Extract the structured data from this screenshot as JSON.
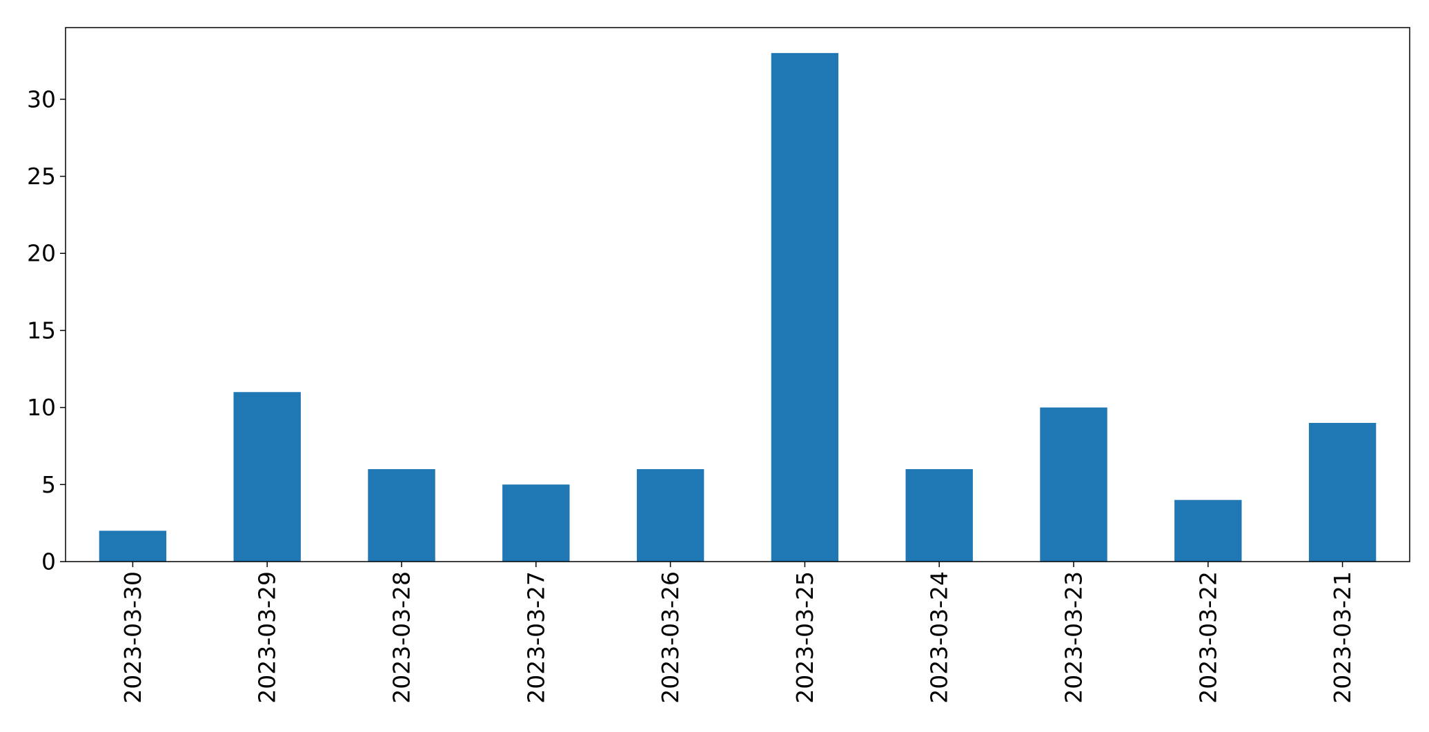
{
  "chart_data": {
    "type": "bar",
    "title": "",
    "xlabel": "",
    "ylabel": "",
    "categories": [
      "2023-03-30",
      "2023-03-29",
      "2023-03-28",
      "2023-03-27",
      "2023-03-26",
      "2023-03-25",
      "2023-03-24",
      "2023-03-23",
      "2023-03-22",
      "2023-03-21"
    ],
    "values": [
      2,
      11,
      6,
      5,
      6,
      33,
      6,
      10,
      4,
      9
    ],
    "ylim": [
      0,
      34.65
    ],
    "yticks": [
      0,
      5,
      10,
      15,
      20,
      25,
      30
    ],
    "grid": false,
    "legend": "none",
    "bar_color": "#1f77b4",
    "x_tick_rotation": "vertical"
  }
}
